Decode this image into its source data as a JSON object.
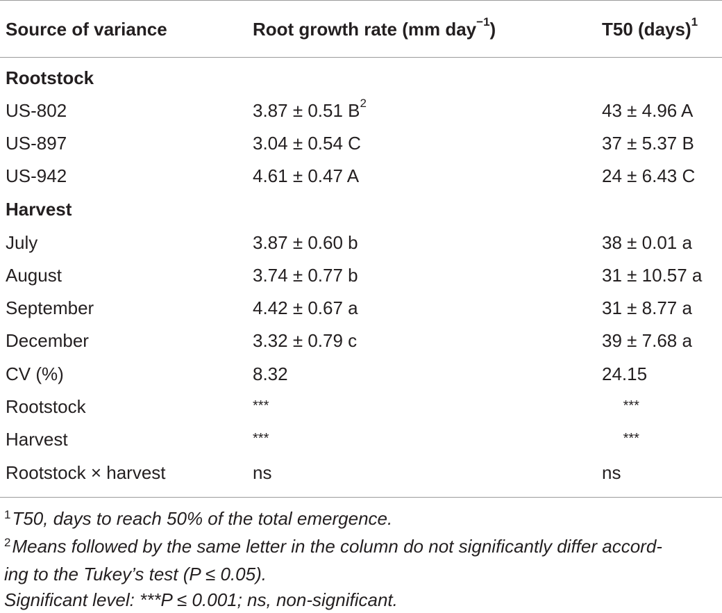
{
  "header": {
    "col1": "Source of variance",
    "col2": "Root growth rate (mm day",
    "col2_sup": "−1",
    "col2_end": ")",
    "col3": "T50 (days)",
    "col3_sup": "1"
  },
  "sections": {
    "rootstock": "Rootstock",
    "harvest": "Harvest"
  },
  "rows": [
    {
      "label": "US-802",
      "rgr": "3.87 ± 0.51 B",
      "rgr_sup": "2",
      "t50": "43 ± 4.96 A"
    },
    {
      "label": "US-897",
      "rgr": "3.04 ± 0.54 C",
      "t50": "37 ± 5.37 B"
    },
    {
      "label": "US-942",
      "rgr": "4.61 ± 0.47 A",
      "t50": "24 ± 6.43 C"
    },
    {
      "label": "July",
      "rgr": "3.87 ± 0.60 b",
      "t50": "38 ± 0.01 a"
    },
    {
      "label": "August",
      "rgr": "3.74 ± 0.77 b",
      "t50": "31 ± 10.57 a"
    },
    {
      "label": "September",
      "rgr": "4.42 ± 0.67 a",
      "t50": "31 ± 8.77 a"
    },
    {
      "label": "December",
      "rgr": "3.32 ± 0.79 c",
      "t50": "39 ± 7.68 a"
    },
    {
      "label": "CV (%)",
      "rgr": "8.32",
      "t50": "24.15"
    },
    {
      "label": "Rootstock",
      "rgr": "***",
      "t50": "***"
    },
    {
      "label": "Harvest",
      "rgr": "***",
      "t50": "***"
    },
    {
      "label": "Rootstock × harvest",
      "rgr": "ns",
      "t50": "ns"
    }
  ],
  "footnotes": [
    {
      "num": "1",
      "text": "T50, days to reach 50% of the total emergence."
    },
    {
      "num": "2",
      "text": "Means followed by the same letter in the column do not significantly differ accord-"
    },
    {
      "num": "",
      "text": "ing to the Tukey’s test (P ≤ 0.05)."
    },
    {
      "num": "",
      "text": "Significant level: ***P ≤ 0.001; ns, non-significant."
    }
  ]
}
